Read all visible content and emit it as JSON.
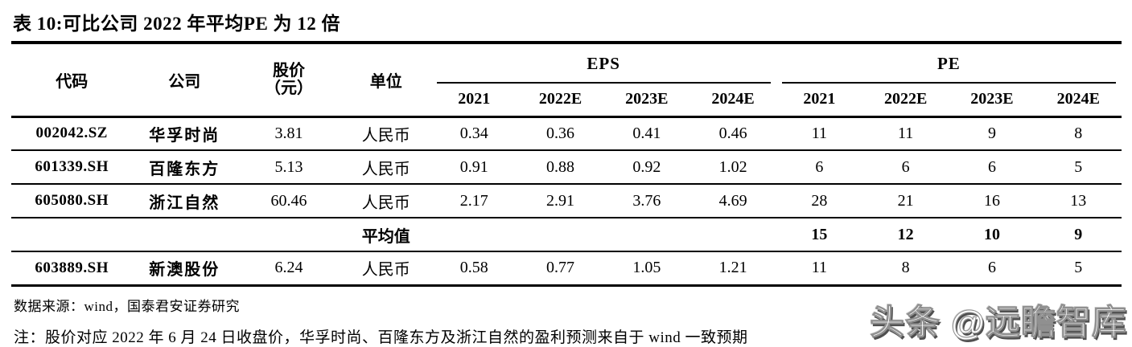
{
  "title": "表 10:可比公司 2022 年平均PE 为 12 倍",
  "table": {
    "headers": {
      "code": "代码",
      "company": "公司",
      "price_line1": "股价",
      "price_line2": "（元）",
      "unit": "单位",
      "eps_group": "EPS",
      "pe_group": "PE",
      "eps_years": [
        "2021",
        "2022E",
        "2023E",
        "2024E"
      ],
      "pe_years": [
        "2021",
        "2022E",
        "2023E",
        "2024E"
      ]
    },
    "rows": [
      {
        "code": "002042.SZ",
        "company": "华孚时尚",
        "price": "3.81",
        "unit": "人民币",
        "eps": [
          "0.34",
          "0.36",
          "0.41",
          "0.46"
        ],
        "pe": [
          "11",
          "11",
          "9",
          "8"
        ]
      },
      {
        "code": "601339.SH",
        "company": "百隆东方",
        "price": "5.13",
        "unit": "人民币",
        "eps": [
          "0.91",
          "0.88",
          "0.92",
          "1.02"
        ],
        "pe": [
          "6",
          "6",
          "6",
          "5"
        ]
      },
      {
        "code": "605080.SH",
        "company": "浙江自然",
        "price": "60.46",
        "unit": "人民币",
        "eps": [
          "2.17",
          "2.91",
          "3.76",
          "4.69"
        ],
        "pe": [
          "28",
          "21",
          "16",
          "13"
        ]
      },
      {
        "code": "",
        "company": "",
        "price": "",
        "unit": "平均值",
        "eps": [
          "",
          "",
          "",
          ""
        ],
        "pe": [
          "15",
          "12",
          "10",
          "9"
        ]
      },
      {
        "code": "603889.SH",
        "company": "新澳股份",
        "price": "6.24",
        "unit": "人民币",
        "eps": [
          "0.58",
          "0.77",
          "1.05",
          "1.21"
        ],
        "pe": [
          "11",
          "8",
          "6",
          "5"
        ]
      }
    ]
  },
  "footer": {
    "source": "数据来源：wind，国泰君安证券研究",
    "note": "注：股价对应 2022 年 6 月 24 日收盘价，华孚时尚、百隆东方及浙江自然的盈利预测来自于 wind 一致预期"
  },
  "watermark": "头条 @远瞻智库",
  "colors": {
    "text": "#000000",
    "background": "#ffffff",
    "watermark_shadow": "#4f4f4f"
  }
}
